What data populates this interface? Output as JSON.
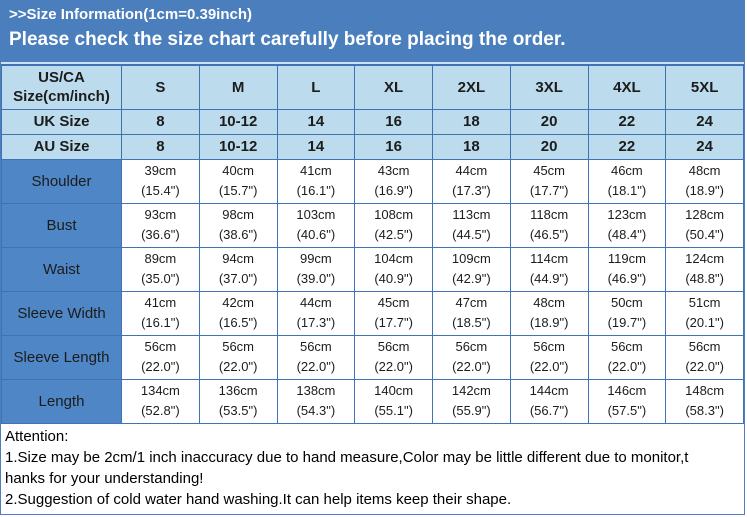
{
  "banner": {
    "line1": ">>Size Information(1cm=0.39inch)",
    "line2": "Please check the size chart carefully before placing the order."
  },
  "table": {
    "corner_header": [
      "US/CA",
      "Size(cm/inch)"
    ],
    "size_columns": [
      "S",
      "M",
      "L",
      "XL",
      "2XL",
      "3XL",
      "4XL",
      "5XL"
    ],
    "uk_row": {
      "label": "UK Size",
      "values": [
        "8",
        "10-12",
        "14",
        "16",
        "18",
        "20",
        "22",
        "24"
      ]
    },
    "au_row": {
      "label": "AU Size",
      "values": [
        "8",
        "10-12",
        "14",
        "16",
        "18",
        "20",
        "22",
        "24"
      ]
    },
    "measurement_rows": [
      {
        "label": "Shoulder",
        "cm": [
          "39cm",
          "40cm",
          "41cm",
          "43cm",
          "44cm",
          "45cm",
          "46cm",
          "48cm"
        ],
        "inch": [
          "(15.4\")",
          "(15.7\")",
          "(16.1\")",
          "(16.9\")",
          "(17.3\")",
          "(17.7\")",
          "(18.1\")",
          "(18.9\")"
        ]
      },
      {
        "label": "Bust",
        "cm": [
          "93cm",
          "98cm",
          "103cm",
          "108cm",
          "113cm",
          "118cm",
          "123cm",
          "128cm"
        ],
        "inch": [
          "(36.6\")",
          "(38.6\")",
          "(40.6\")",
          "(42.5\")",
          "(44.5\")",
          "(46.5\")",
          "(48.4\")",
          "(50.4\")"
        ]
      },
      {
        "label": "Waist",
        "cm": [
          "89cm",
          "94cm",
          "99cm",
          "104cm",
          "109cm",
          "114cm",
          "119cm",
          "124cm"
        ],
        "inch": [
          "(35.0\")",
          "(37.0\")",
          "(39.0\")",
          "(40.9\")",
          "(42.9\")",
          "(44.9\")",
          "(46.9\")",
          "(48.8\")"
        ]
      },
      {
        "label": "Sleeve Width",
        "cm": [
          "41cm",
          "42cm",
          "44cm",
          "45cm",
          "47cm",
          "48cm",
          "50cm",
          "51cm"
        ],
        "inch": [
          "(16.1\")",
          "(16.5\")",
          "(17.3\")",
          "(17.7\")",
          "(18.5\")",
          "(18.9\")",
          "(19.7\")",
          "(20.1\")"
        ]
      },
      {
        "label": "Sleeve Length",
        "cm": [
          "56cm",
          "56cm",
          "56cm",
          "56cm",
          "56cm",
          "56cm",
          "56cm",
          "56cm"
        ],
        "inch": [
          "(22.0\")",
          "(22.0\")",
          "(22.0\")",
          "(22.0\")",
          "(22.0\")",
          "(22.0\")",
          "(22.0\")",
          "(22.0\")"
        ]
      },
      {
        "label": "Length",
        "cm": [
          "134cm",
          "136cm",
          "138cm",
          "140cm",
          "142cm",
          "144cm",
          "146cm",
          "148cm"
        ],
        "inch": [
          "(52.8\")",
          "(53.5\")",
          "(54.3\")",
          "(55.1\")",
          "(55.9\")",
          "(56.7\")",
          "(57.5\")",
          "(58.3\")"
        ]
      }
    ]
  },
  "notes": {
    "title": "Attention:",
    "lines": [
      "1.Size may be 2cm/1 inch inaccuracy due to hand measure,Color may be little different due to monitor,t",
      "hanks for your understanding!",
      "2.Suggestion of cold water hand washing.It can help items keep their shape."
    ]
  },
  "colors": {
    "banner_bg": "#4a7ebc",
    "banner_text": "#ffffff",
    "header_cell_bg": "#bcdcee",
    "label_cell_bg": "#4f86c6",
    "table_border": "#4173b4",
    "cell_text": "#1c1c1c",
    "page_border": "#4a7ebc",
    "notes_text": "#000000"
  }
}
